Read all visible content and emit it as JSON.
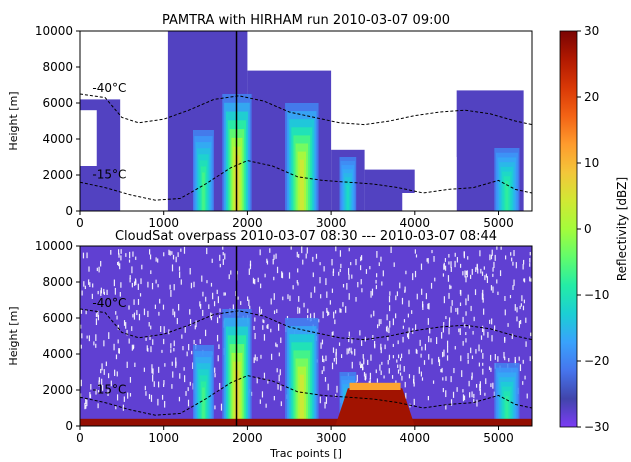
{
  "colors": {
    "colormap": [
      "#30123b",
      "#4145ab",
      "#4675ed",
      "#39a2fc",
      "#1bcfd4",
      "#24eca6",
      "#61fc6c",
      "#a4fc3b",
      "#d1e834",
      "#f3c63a",
      "#fe9b2d",
      "#f36315",
      "#d93806",
      "#b11901",
      "#7a0402"
    ],
    "colorbar_low": "#7b3cf5",
    "isotherm": "#000000",
    "track_line": "#000000"
  },
  "chart_data": [
    {
      "type": "heatmap",
      "title": "PAMTRA with HIRHAM run 2010-03-07 09:00",
      "xlabel": "",
      "ylabel": "Height [m]",
      "xlim": [
        0,
        5400
      ],
      "ylim": [
        0,
        10000
      ],
      "xticks": [
        "0",
        "1000",
        "2000",
        "3000",
        "4000",
        "5000"
      ],
      "yticks": [
        "0",
        "2000",
        "4000",
        "6000",
        "8000",
        "10000"
      ],
      "annotations": [
        {
          "text": "-40°C",
          "x": 100,
          "y": 6600
        },
        {
          "text": "-15°C",
          "x": 100,
          "y": 1800
        }
      ],
      "isotherm_minus40": {
        "x": [
          0,
          300,
          500,
          700,
          1000,
          1300,
          1600,
          1900,
          2200,
          2500,
          2800,
          3100,
          3400,
          3700,
          4000,
          4300,
          4600,
          4900,
          5200,
          5400
        ],
        "y": [
          6500,
          6300,
          5200,
          4900,
          5100,
          5600,
          6200,
          6400,
          6100,
          5500,
          5200,
          4900,
          4800,
          5000,
          5300,
          5500,
          5600,
          5400,
          5000,
          4800
        ]
      },
      "isotherm_minus15": {
        "x": [
          0,
          300,
          600,
          900,
          1200,
          1500,
          1800,
          2000,
          2300,
          2600,
          2900,
          3200,
          3500,
          3800,
          4100,
          4400,
          4700,
          5000,
          5200,
          5400
        ],
        "y": [
          1600,
          1300,
          900,
          600,
          700,
          1500,
          2400,
          2800,
          2500,
          1900,
          1700,
          1600,
          1500,
          1300,
          1000,
          1200,
          1300,
          1700,
          1200,
          1000
        ]
      },
      "track_marker_x": 1870
    },
    {
      "type": "heatmap",
      "title": "CloudSat overpass 2010-03-07 08:30 --- 2010-03-07 08:44",
      "xlabel": "Trac points []",
      "ylabel": "Height [m]",
      "xlim": [
        0,
        5400
      ],
      "ylim": [
        0,
        10000
      ],
      "xticks": [
        "0",
        "1000",
        "2000",
        "3000",
        "4000",
        "5000"
      ],
      "yticks": [
        "0",
        "2000",
        "4000",
        "6000",
        "8000",
        "10000"
      ],
      "annotations": [
        {
          "text": "-40°C",
          "x": 100,
          "y": 6600
        },
        {
          "text": "-15°C",
          "x": 100,
          "y": 1800
        }
      ],
      "isotherm_minus40": {
        "x": [
          0,
          300,
          500,
          700,
          1000,
          1300,
          1600,
          1900,
          2200,
          2500,
          2800,
          3100,
          3400,
          3700,
          4000,
          4300,
          4600,
          4900,
          5200,
          5400
        ],
        "y": [
          6500,
          6300,
          5200,
          4900,
          5100,
          5600,
          6200,
          6400,
          6100,
          5500,
          5200,
          4900,
          4800,
          5000,
          5300,
          5500,
          5600,
          5400,
          5000,
          4800
        ]
      },
      "isotherm_minus15": {
        "x": [
          0,
          300,
          600,
          900,
          1200,
          1500,
          1800,
          2000,
          2300,
          2600,
          2900,
          3200,
          3500,
          3800,
          4100,
          4400,
          4700,
          5000,
          5200,
          5400
        ],
        "y": [
          1600,
          1300,
          900,
          600,
          700,
          1500,
          2400,
          2800,
          2500,
          1900,
          1700,
          1600,
          1500,
          1300,
          1000,
          1200,
          1300,
          1700,
          1200,
          1000
        ]
      },
      "track_marker_x": 1870
    }
  ],
  "colorbar": {
    "label": "Reflectivity [dBZ]",
    "range": [
      -30,
      30
    ],
    "ticks": [
      "30",
      "20",
      "10",
      "0",
      "−10",
      "−20",
      "−30"
    ]
  }
}
